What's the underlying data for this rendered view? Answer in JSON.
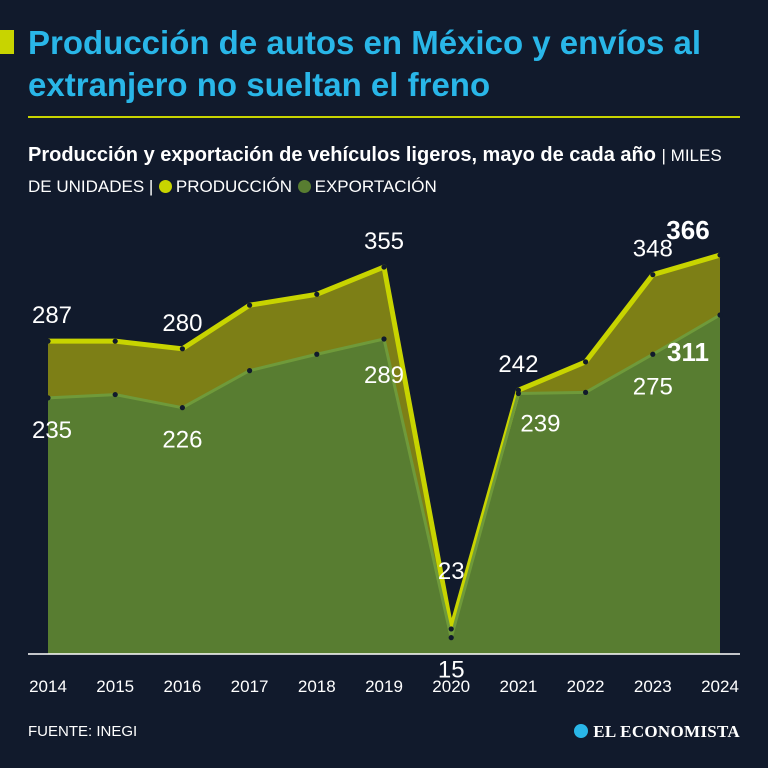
{
  "header": {
    "title": "Producción de autos en México y envíos al extranjero no sueltan el freno"
  },
  "subtitle": {
    "main": "Producción y exportación de vehículos ligeros, mayo de cada año",
    "units": "| MILES DE UNIDADES |",
    "legend_production": "PRODUCCIÓN",
    "legend_export": "EXPORTACIÓN"
  },
  "footer": {
    "source": "FUENTE: INEGI",
    "brand": "EL ECONOMISTA"
  },
  "colors": {
    "background": "#111a2c",
    "title": "#29b6e8",
    "production": "#c8d400",
    "production_fill": "#7d7f16",
    "export": "#587d31",
    "export_line": "#6f9a3a",
    "axis": "#ffffff"
  },
  "chart_data": {
    "type": "area",
    "x": [
      "2014",
      "2015",
      "2016",
      "2017",
      "2018",
      "2019",
      "2020",
      "2021",
      "2022",
      "2023",
      "2024"
    ],
    "series": [
      {
        "name": "PRODUCCIÓN",
        "values": [
          287,
          287,
          280,
          320,
          330,
          355,
          23,
          242,
          268,
          348,
          366
        ],
        "labels": [
          "287",
          null,
          "280",
          null,
          null,
          "355",
          "23",
          "242",
          null,
          "348",
          "366"
        ]
      },
      {
        "name": "EXPORTACIÓN",
        "values": [
          235,
          238,
          226,
          260,
          275,
          289,
          15,
          239,
          240,
          275,
          311
        ],
        "labels": [
          "235",
          null,
          "226",
          null,
          null,
          "289",
          "15",
          "239",
          null,
          "275",
          "311"
        ]
      }
    ],
    "ylim": [
      0,
      400
    ],
    "title": "Producción y exportación de vehículos ligeros, mayo de cada año",
    "ylabel": "MILES DE UNIDADES",
    "xlabel": ""
  }
}
